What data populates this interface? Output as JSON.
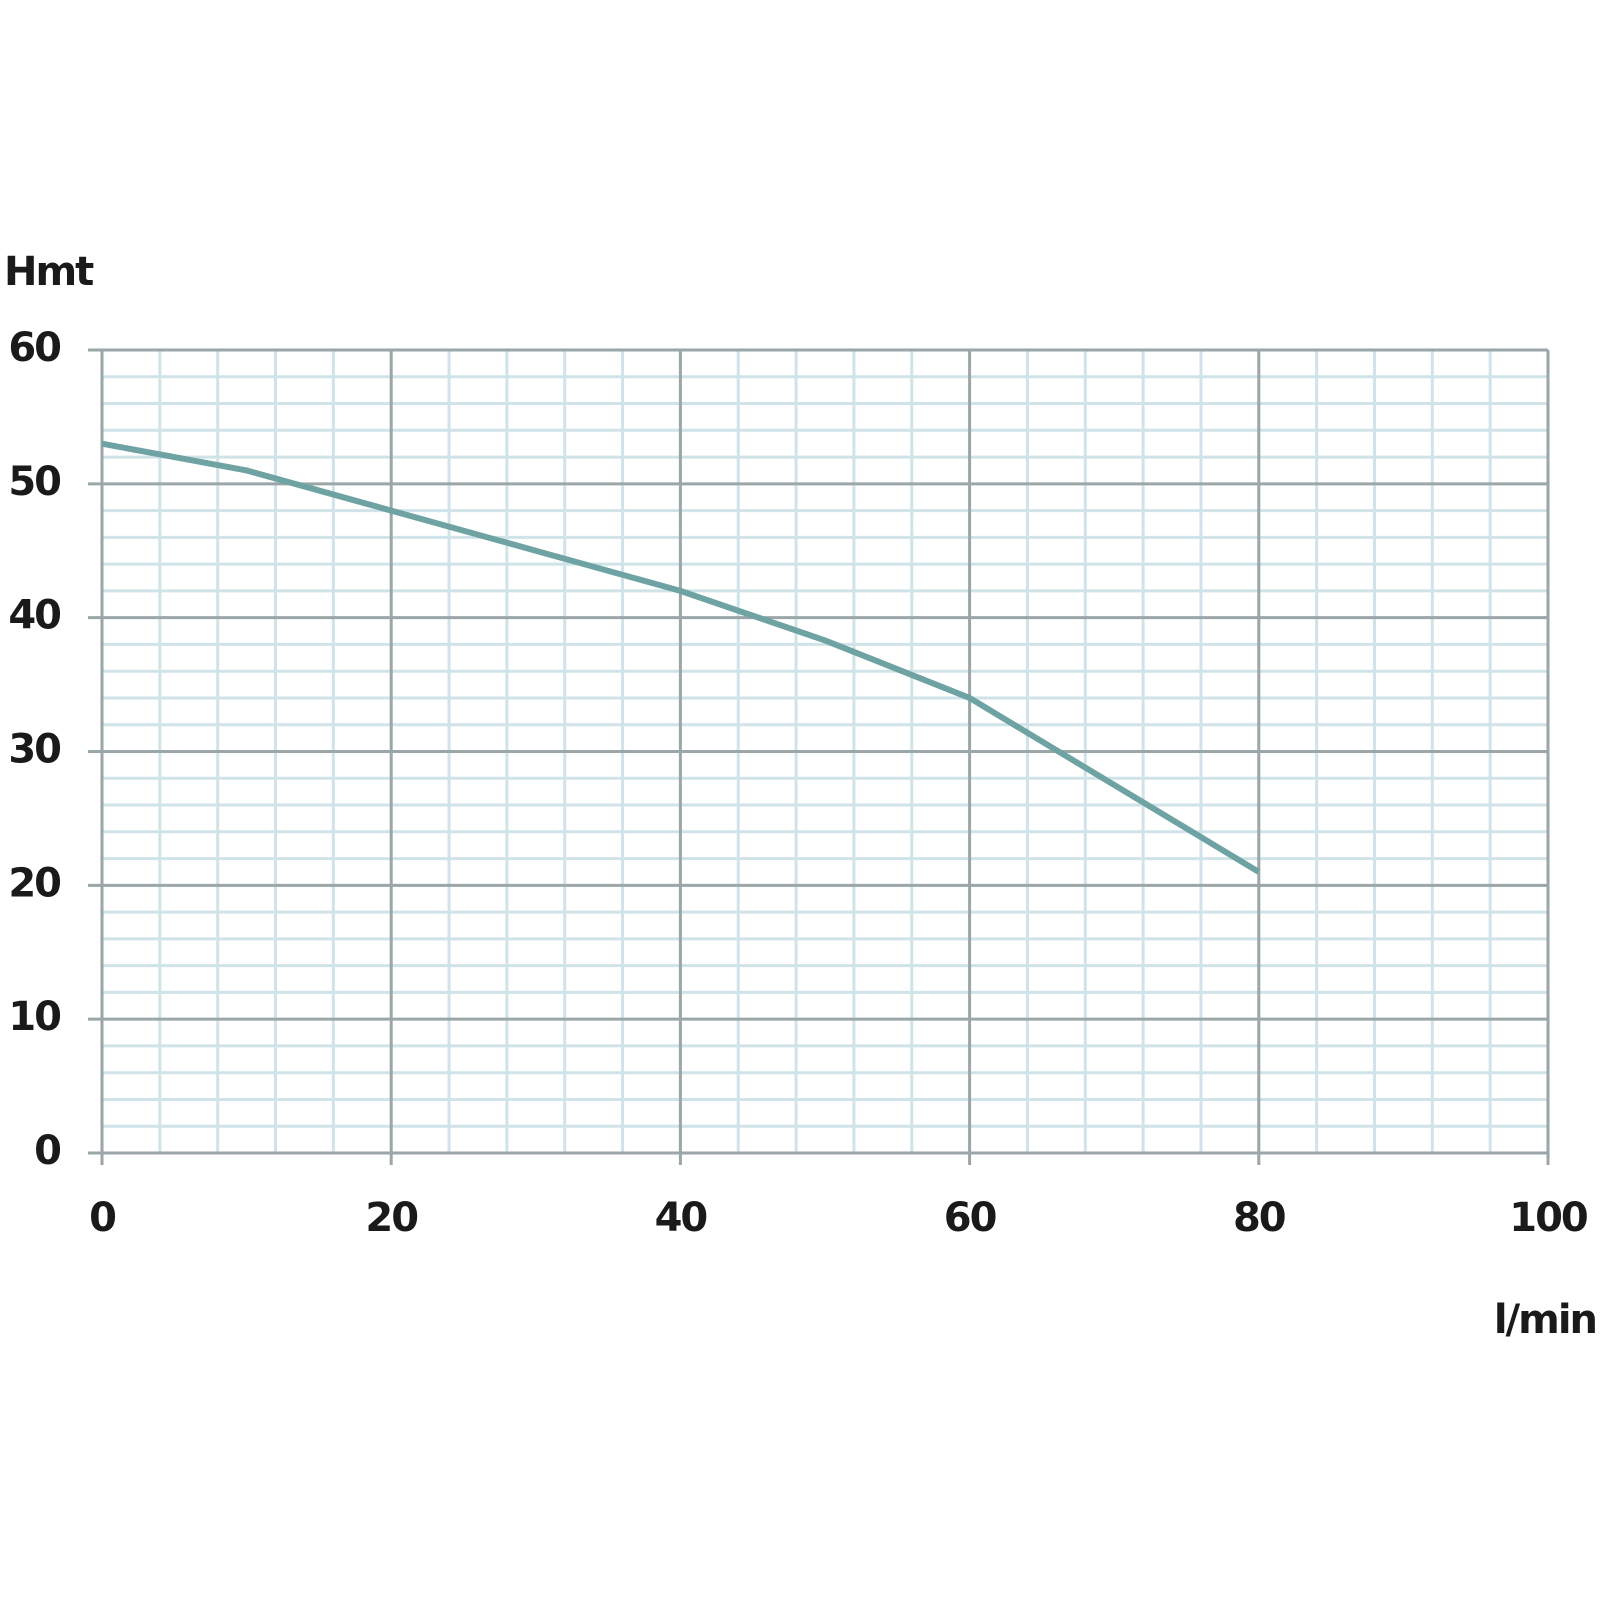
{
  "chart_data": {
    "type": "line",
    "y_label": "Hmt",
    "x_label": "l/min",
    "series": [
      {
        "color": "#6fa3a3",
        "x": [
          0,
          10,
          20,
          30,
          40,
          50,
          60,
          70,
          80
        ],
        "values": [
          53,
          51,
          48,
          45,
          42,
          38.3,
          34,
          27.5,
          21
        ]
      }
    ],
    "xlim": [
      0,
      100
    ],
    "xticks": [
      0,
      20,
      40,
      60,
      80,
      100
    ],
    "ylim": [
      0,
      60
    ],
    "yticks": [
      0,
      10,
      20,
      30,
      40,
      50,
      60
    ],
    "grid": true,
    "minor_divisions": 5,
    "grid_color": "#9aa6a8",
    "minor_grid_color": "#cfe3e8"
  }
}
